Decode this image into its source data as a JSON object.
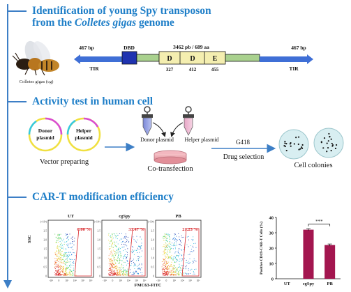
{
  "section1": {
    "title_line1": "Identification of young Spy transposon",
    "title_line2_pre": "from the ",
    "title_line2_italic": "Colletes gigas",
    "title_line2_post": " genome",
    "bee_caption": "Colletes gigas (cg)",
    "left_bp": "467 bp",
    "right_bp": "467 bp",
    "left_tir": "TIR",
    "right_tir": "TIR",
    "dbd": "DBD",
    "length_label": "3462 pb / 689 aa",
    "motifs": [
      "D",
      "D",
      "E"
    ],
    "motif_positions": [
      "327",
      "412",
      "455"
    ]
  },
  "section2": {
    "title": "Activity test in human cell",
    "donor_circle_label": [
      "Donor",
      "plasmid"
    ],
    "helper_circle_label": [
      "Helper",
      "plasmid"
    ],
    "vector_preparing": "Vector preparing",
    "donor_tube": "Donor plasmid",
    "helper_tube": "Helper plasmid",
    "co_transfection": "Co-transfection",
    "g418": "G418",
    "drug_selection": "Drug selection",
    "cell_colonies": "Cell colonies"
  },
  "section3": {
    "title": "CAR-T modification efficiency",
    "flow_panels": [
      {
        "label": "UT",
        "percent": "0.00 %",
        "percent_value": 0.0
      },
      {
        "label": "cgSpy",
        "percent": "33.47 %",
        "percent_value": 33.47
      },
      {
        "label": "PB",
        "percent": "21.23 %",
        "percent_value": 21.23
      }
    ],
    "y_axis_label": "SSC",
    "x_axis_label": "FMC63-FITC",
    "y_ticks": [
      "(×10⁵)",
      "2.5",
      "2.0",
      "1.5",
      "1.0",
      "0.5",
      "0"
    ],
    "x_ticks": [
      "-10³",
      "0",
      "10³",
      "10⁴",
      "10⁵",
      "10⁶"
    ],
    "significance": "***"
  },
  "chart_data": {
    "type": "bar",
    "categories": [
      "UT",
      "cgSpy",
      "PB"
    ],
    "values": [
      0,
      32,
      22
    ],
    "ylabel": "Positive CD19-CAR-T Cells (%)",
    "ylim": [
      0,
      40
    ],
    "yticks": [
      "0",
      "10",
      "20",
      "30",
      "40"
    ],
    "colors": [
      "#a3164f",
      "#a3164f",
      "#a3164f"
    ]
  },
  "colors": {
    "accent": "#1f7fc8",
    "dde_box": "#f4eeb0",
    "green_box": "#a9d18e",
    "dbd_box": "#1f33b0",
    "tir_arrow": "#3f6fd6",
    "bar": "#a3164f"
  }
}
